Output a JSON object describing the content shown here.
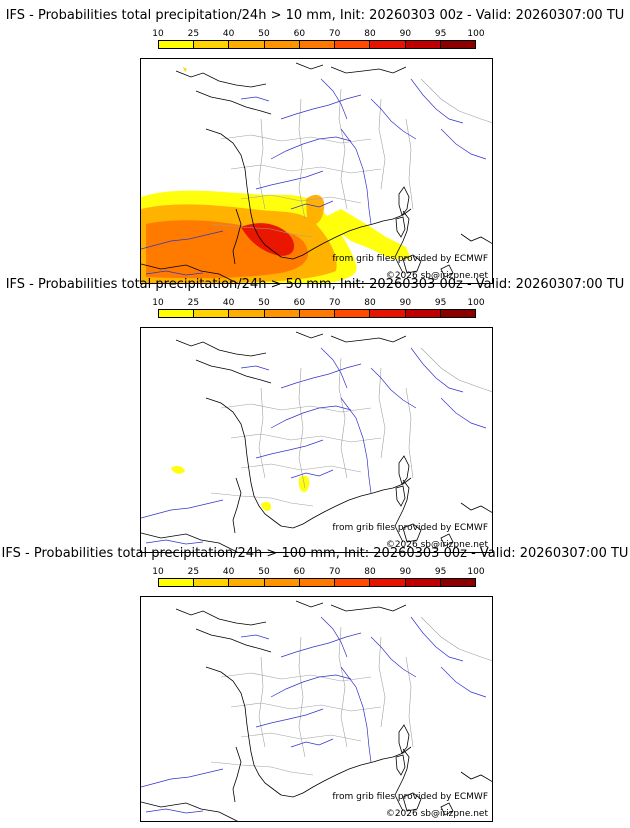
{
  "panels": [
    {
      "title": "IFS - Probabilities total precipitation/24h > 10 mm, Init: 20260303 00z - Valid: 20260307:00 TU",
      "precip_level": "heavy"
    },
    {
      "title": "IFS - Probabilities total precipitation/24h > 50 mm, Init: 20260303 00z - Valid: 20260307:00 TU",
      "precip_level": "light"
    },
    {
      "title": "IFS - Probabilities total precipitation/24h > 100 mm, Init: 20260303 00z - Valid: 20260307:00 TU",
      "precip_level": "none"
    }
  ],
  "colorbar": {
    "labels": [
      "10",
      "25",
      "40",
      "50",
      "60",
      "70",
      "80",
      "90",
      "95",
      "100"
    ],
    "colors": [
      "#ffff00",
      "#ffd200",
      "#ffae00",
      "#ff9400",
      "#ff7800",
      "#ff4a00",
      "#e81200",
      "#c00000",
      "#8a0000",
      "#5a0000"
    ]
  },
  "credits": {
    "grib": "from grib files provided by ECMWF",
    "copyright": "©2026 sb@irizpne.net"
  },
  "map_colors": {
    "coast": "#000000",
    "rivers": "#3333cc",
    "borders": "#a0a0a0"
  }
}
